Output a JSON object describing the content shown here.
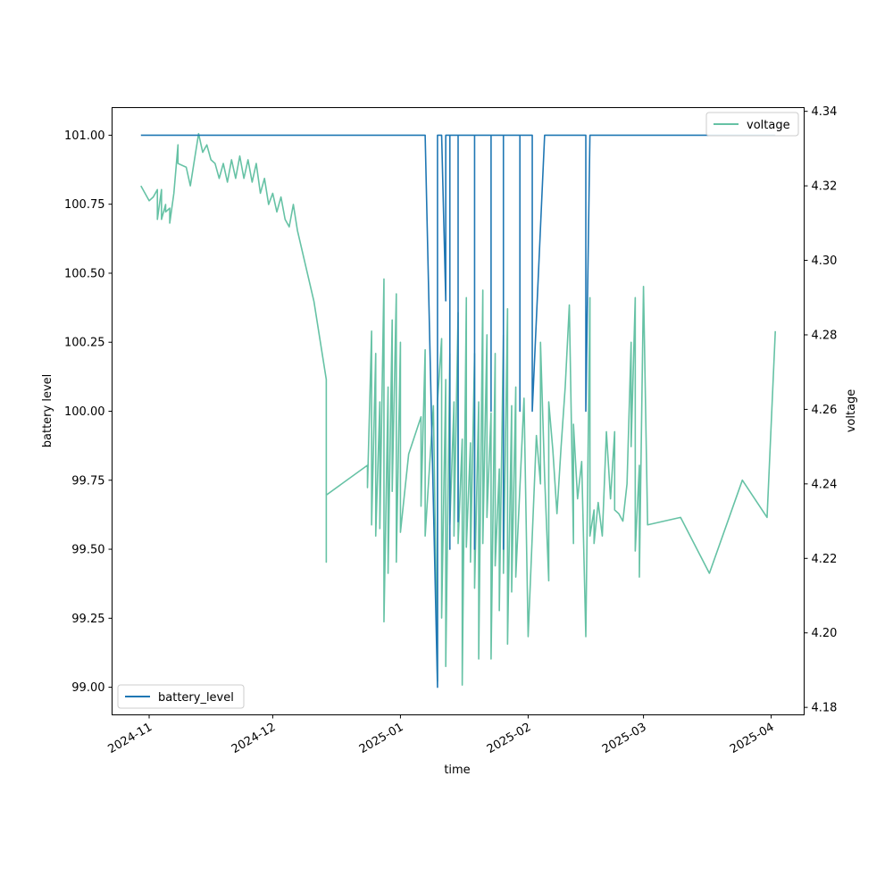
{
  "chart_data": {
    "type": "line",
    "xlabel": "time",
    "ylabel_left": "battery level",
    "ylabel_right": "voltage",
    "x_ticks": [
      "2024-11",
      "2024-12",
      "2025-01",
      "2025-02",
      "2025-03",
      "2025-04"
    ],
    "x_range": [
      "2024-10-23",
      "2025-04-09"
    ],
    "left_axis": {
      "ylim": [
        98.9,
        101.1
      ],
      "ticks": [
        99.0,
        99.25,
        99.5,
        99.75,
        100.0,
        100.25,
        100.5,
        100.75,
        101.0
      ],
      "tick_labels": [
        "99.00",
        "99.25",
        "99.50",
        "99.75",
        "100.00",
        "100.25",
        "100.50",
        "100.75",
        "101.00"
      ]
    },
    "right_axis": {
      "ylim": [
        4.178,
        4.341
      ],
      "ticks": [
        4.18,
        4.2,
        4.22,
        4.24,
        4.26,
        4.28,
        4.3,
        4.32,
        4.34
      ],
      "tick_labels": [
        "4.18",
        "4.20",
        "4.22",
        "4.24",
        "4.26",
        "4.28",
        "4.30",
        "4.32",
        "4.34"
      ]
    },
    "legend_left": {
      "entry": "battery_level",
      "position": "lower-left"
    },
    "legend_right": {
      "entry": "voltage",
      "position": "upper-right"
    },
    "series": [
      {
        "name": "battery_level",
        "axis": "left",
        "color": "#1f77b4",
        "points": [
          [
            "2024-10-30",
            101
          ],
          [
            "2025-01-07",
            101
          ],
          [
            "2025-01-10",
            99
          ],
          [
            "2025-01-10",
            101
          ],
          [
            "2025-01-11",
            101
          ],
          [
            "2025-01-12",
            100.4
          ],
          [
            "2025-01-12",
            101
          ],
          [
            "2025-01-13",
            101
          ],
          [
            "2025-01-13",
            99.5
          ],
          [
            "2025-01-13",
            101
          ],
          [
            "2025-01-15",
            101
          ],
          [
            "2025-01-15",
            99.6
          ],
          [
            "2025-01-15",
            101
          ],
          [
            "2025-01-19",
            101
          ],
          [
            "2025-01-19",
            99.5
          ],
          [
            "2025-01-19",
            101
          ],
          [
            "2025-01-23",
            101
          ],
          [
            "2025-01-23",
            100
          ],
          [
            "2025-01-23",
            101
          ],
          [
            "2025-01-26",
            101
          ],
          [
            "2025-01-26",
            99.5
          ],
          [
            "2025-01-26",
            101
          ],
          [
            "2025-01-30",
            101
          ],
          [
            "2025-01-30",
            100
          ],
          [
            "2025-01-30",
            101
          ],
          [
            "2025-02-02",
            101
          ],
          [
            "2025-02-02",
            100
          ],
          [
            "2025-02-05",
            101
          ],
          [
            "2025-02-15",
            101
          ],
          [
            "2025-02-15",
            100
          ],
          [
            "2025-02-16",
            101
          ],
          [
            "2025-04-02",
            101
          ]
        ]
      },
      {
        "name": "voltage",
        "axis": "right",
        "color": "#66c2a5",
        "points": [
          [
            "2024-10-30",
            4.32
          ],
          [
            "2024-11-01",
            4.316
          ],
          [
            "2024-11-02",
            4.317
          ],
          [
            "2024-11-03",
            4.319
          ],
          [
            "2024-11-03",
            4.311
          ],
          [
            "2024-11-04",
            4.319
          ],
          [
            "2024-11-04",
            4.311
          ],
          [
            "2024-11-05",
            4.315
          ],
          [
            "2024-11-05",
            4.313
          ],
          [
            "2024-11-06",
            4.314
          ],
          [
            "2024-11-06",
            4.31
          ],
          [
            "2024-11-07",
            4.318
          ],
          [
            "2024-11-08",
            4.331
          ],
          [
            "2024-11-08",
            4.326
          ],
          [
            "2024-11-10",
            4.325
          ],
          [
            "2024-11-11",
            4.32
          ],
          [
            "2024-11-12",
            4.327
          ],
          [
            "2024-11-13",
            4.334
          ],
          [
            "2024-11-14",
            4.329
          ],
          [
            "2024-11-15",
            4.331
          ],
          [
            "2024-11-16",
            4.327
          ],
          [
            "2024-11-17",
            4.326
          ],
          [
            "2024-11-18",
            4.322
          ],
          [
            "2024-11-19",
            4.326
          ],
          [
            "2024-11-20",
            4.321
          ],
          [
            "2024-11-21",
            4.327
          ],
          [
            "2024-11-22",
            4.322
          ],
          [
            "2024-11-23",
            4.328
          ],
          [
            "2024-11-24",
            4.322
          ],
          [
            "2024-11-25",
            4.327
          ],
          [
            "2024-11-26",
            4.321
          ],
          [
            "2024-11-27",
            4.326
          ],
          [
            "2024-11-28",
            4.318
          ],
          [
            "2024-11-29",
            4.322
          ],
          [
            "2024-11-30",
            4.315
          ],
          [
            "2024-12-01",
            4.318
          ],
          [
            "2024-12-02",
            4.313
          ],
          [
            "2024-12-03",
            4.317
          ],
          [
            "2024-12-04",
            4.311
          ],
          [
            "2024-12-05",
            4.309
          ],
          [
            "2024-12-06",
            4.315
          ],
          [
            "2024-12-07",
            4.308
          ],
          [
            "2024-12-11",
            4.289
          ],
          [
            "2024-12-14",
            4.268
          ],
          [
            "2024-12-14",
            4.219
          ],
          [
            "2024-12-14",
            4.237
          ],
          [
            "2024-12-24",
            4.245
          ],
          [
            "2024-12-24",
            4.239
          ],
          [
            "2024-12-25",
            4.281
          ],
          [
            "2024-12-25",
            4.229
          ],
          [
            "2024-12-26",
            4.275
          ],
          [
            "2024-12-26",
            4.226
          ],
          [
            "2024-12-27",
            4.262
          ],
          [
            "2024-12-27",
            4.228
          ],
          [
            "2024-12-28",
            4.295
          ],
          [
            "2024-12-28",
            4.203
          ],
          [
            "2024-12-29",
            4.266
          ],
          [
            "2024-12-29",
            4.216
          ],
          [
            "2024-12-30",
            4.284
          ],
          [
            "2024-12-30",
            4.238
          ],
          [
            "2024-12-31",
            4.291
          ],
          [
            "2024-12-31",
            4.219
          ],
          [
            "2025-01-01",
            4.278
          ],
          [
            "2025-01-01",
            4.227
          ],
          [
            "2025-01-03",
            4.248
          ],
          [
            "2025-01-06",
            4.258
          ],
          [
            "2025-01-06",
            4.234
          ],
          [
            "2025-01-07",
            4.276
          ],
          [
            "2025-01-07",
            4.226
          ],
          [
            "2025-01-09",
            4.261
          ],
          [
            "2025-01-10",
            4.187
          ],
          [
            "2025-01-10",
            4.262
          ],
          [
            "2025-01-11",
            4.279
          ],
          [
            "2025-01-11",
            4.204
          ],
          [
            "2025-01-12",
            4.268
          ],
          [
            "2025-01-12",
            4.191
          ],
          [
            "2025-01-13",
            4.275
          ],
          [
            "2025-01-13",
            4.229
          ],
          [
            "2025-01-14",
            4.262
          ],
          [
            "2025-01-14",
            4.226
          ],
          [
            "2025-01-15",
            4.286
          ],
          [
            "2025-01-15",
            4.224
          ],
          [
            "2025-01-16",
            4.252
          ],
          [
            "2025-01-16",
            4.186
          ],
          [
            "2025-01-17",
            4.29
          ],
          [
            "2025-01-17",
            4.223
          ],
          [
            "2025-01-18",
            4.251
          ],
          [
            "2025-01-18",
            4.219
          ],
          [
            "2025-01-19",
            4.275
          ],
          [
            "2025-01-19",
            4.212
          ],
          [
            "2025-01-20",
            4.262
          ],
          [
            "2025-01-20",
            4.193
          ],
          [
            "2025-01-21",
            4.292
          ],
          [
            "2025-01-21",
            4.224
          ],
          [
            "2025-01-22",
            4.28
          ],
          [
            "2025-01-22",
            4.231
          ],
          [
            "2025-01-23",
            4.259
          ],
          [
            "2025-01-23",
            4.193
          ],
          [
            "2025-01-24",
            4.275
          ],
          [
            "2025-01-24",
            4.218
          ],
          [
            "2025-01-25",
            4.244
          ],
          [
            "2025-01-25",
            4.206
          ],
          [
            "2025-01-26",
            4.28
          ],
          [
            "2025-01-26",
            4.216
          ],
          [
            "2025-01-27",
            4.287
          ],
          [
            "2025-01-27",
            4.197
          ],
          [
            "2025-01-28",
            4.261
          ],
          [
            "2025-01-28",
            4.211
          ],
          [
            "2025-01-29",
            4.266
          ],
          [
            "2025-01-29",
            4.215
          ],
          [
            "2025-01-31",
            4.263
          ],
          [
            "2025-02-01",
            4.199
          ],
          [
            "2025-02-03",
            4.253
          ],
          [
            "2025-02-04",
            4.24
          ],
          [
            "2025-02-04",
            4.278
          ],
          [
            "2025-02-05",
            4.242
          ],
          [
            "2025-02-06",
            4.214
          ],
          [
            "2025-02-06",
            4.262
          ],
          [
            "2025-02-07",
            4.249
          ],
          [
            "2025-02-08",
            4.232
          ],
          [
            "2025-02-09",
            4.25
          ],
          [
            "2025-02-10",
            4.266
          ],
          [
            "2025-02-11",
            4.288
          ],
          [
            "2025-02-12",
            4.224
          ],
          [
            "2025-02-12",
            4.256
          ],
          [
            "2025-02-13",
            4.236
          ],
          [
            "2025-02-14",
            4.246
          ],
          [
            "2025-02-15",
            4.199
          ],
          [
            "2025-02-16",
            4.29
          ],
          [
            "2025-02-16",
            4.226
          ],
          [
            "2025-02-17",
            4.233
          ],
          [
            "2025-02-17",
            4.224
          ],
          [
            "2025-02-18",
            4.235
          ],
          [
            "2025-02-19",
            4.226
          ],
          [
            "2025-02-20",
            4.254
          ],
          [
            "2025-02-21",
            4.236
          ],
          [
            "2025-02-22",
            4.254
          ],
          [
            "2025-02-22",
            4.233
          ],
          [
            "2025-02-23",
            4.232
          ],
          [
            "2025-02-24",
            4.23
          ],
          [
            "2025-02-25",
            4.24
          ],
          [
            "2025-02-26",
            4.278
          ],
          [
            "2025-02-26",
            4.25
          ],
          [
            "2025-02-27",
            4.29
          ],
          [
            "2025-02-27",
            4.222
          ],
          [
            "2025-02-28",
            4.245
          ],
          [
            "2025-02-28",
            4.215
          ],
          [
            "2025-03-01",
            4.293
          ],
          [
            "2025-03-02",
            4.229
          ],
          [
            "2025-03-10",
            4.231
          ],
          [
            "2025-03-17",
            4.216
          ],
          [
            "2025-03-25",
            4.241
          ],
          [
            "2025-03-31",
            4.231
          ],
          [
            "2025-04-02",
            4.281
          ]
        ]
      }
    ]
  }
}
